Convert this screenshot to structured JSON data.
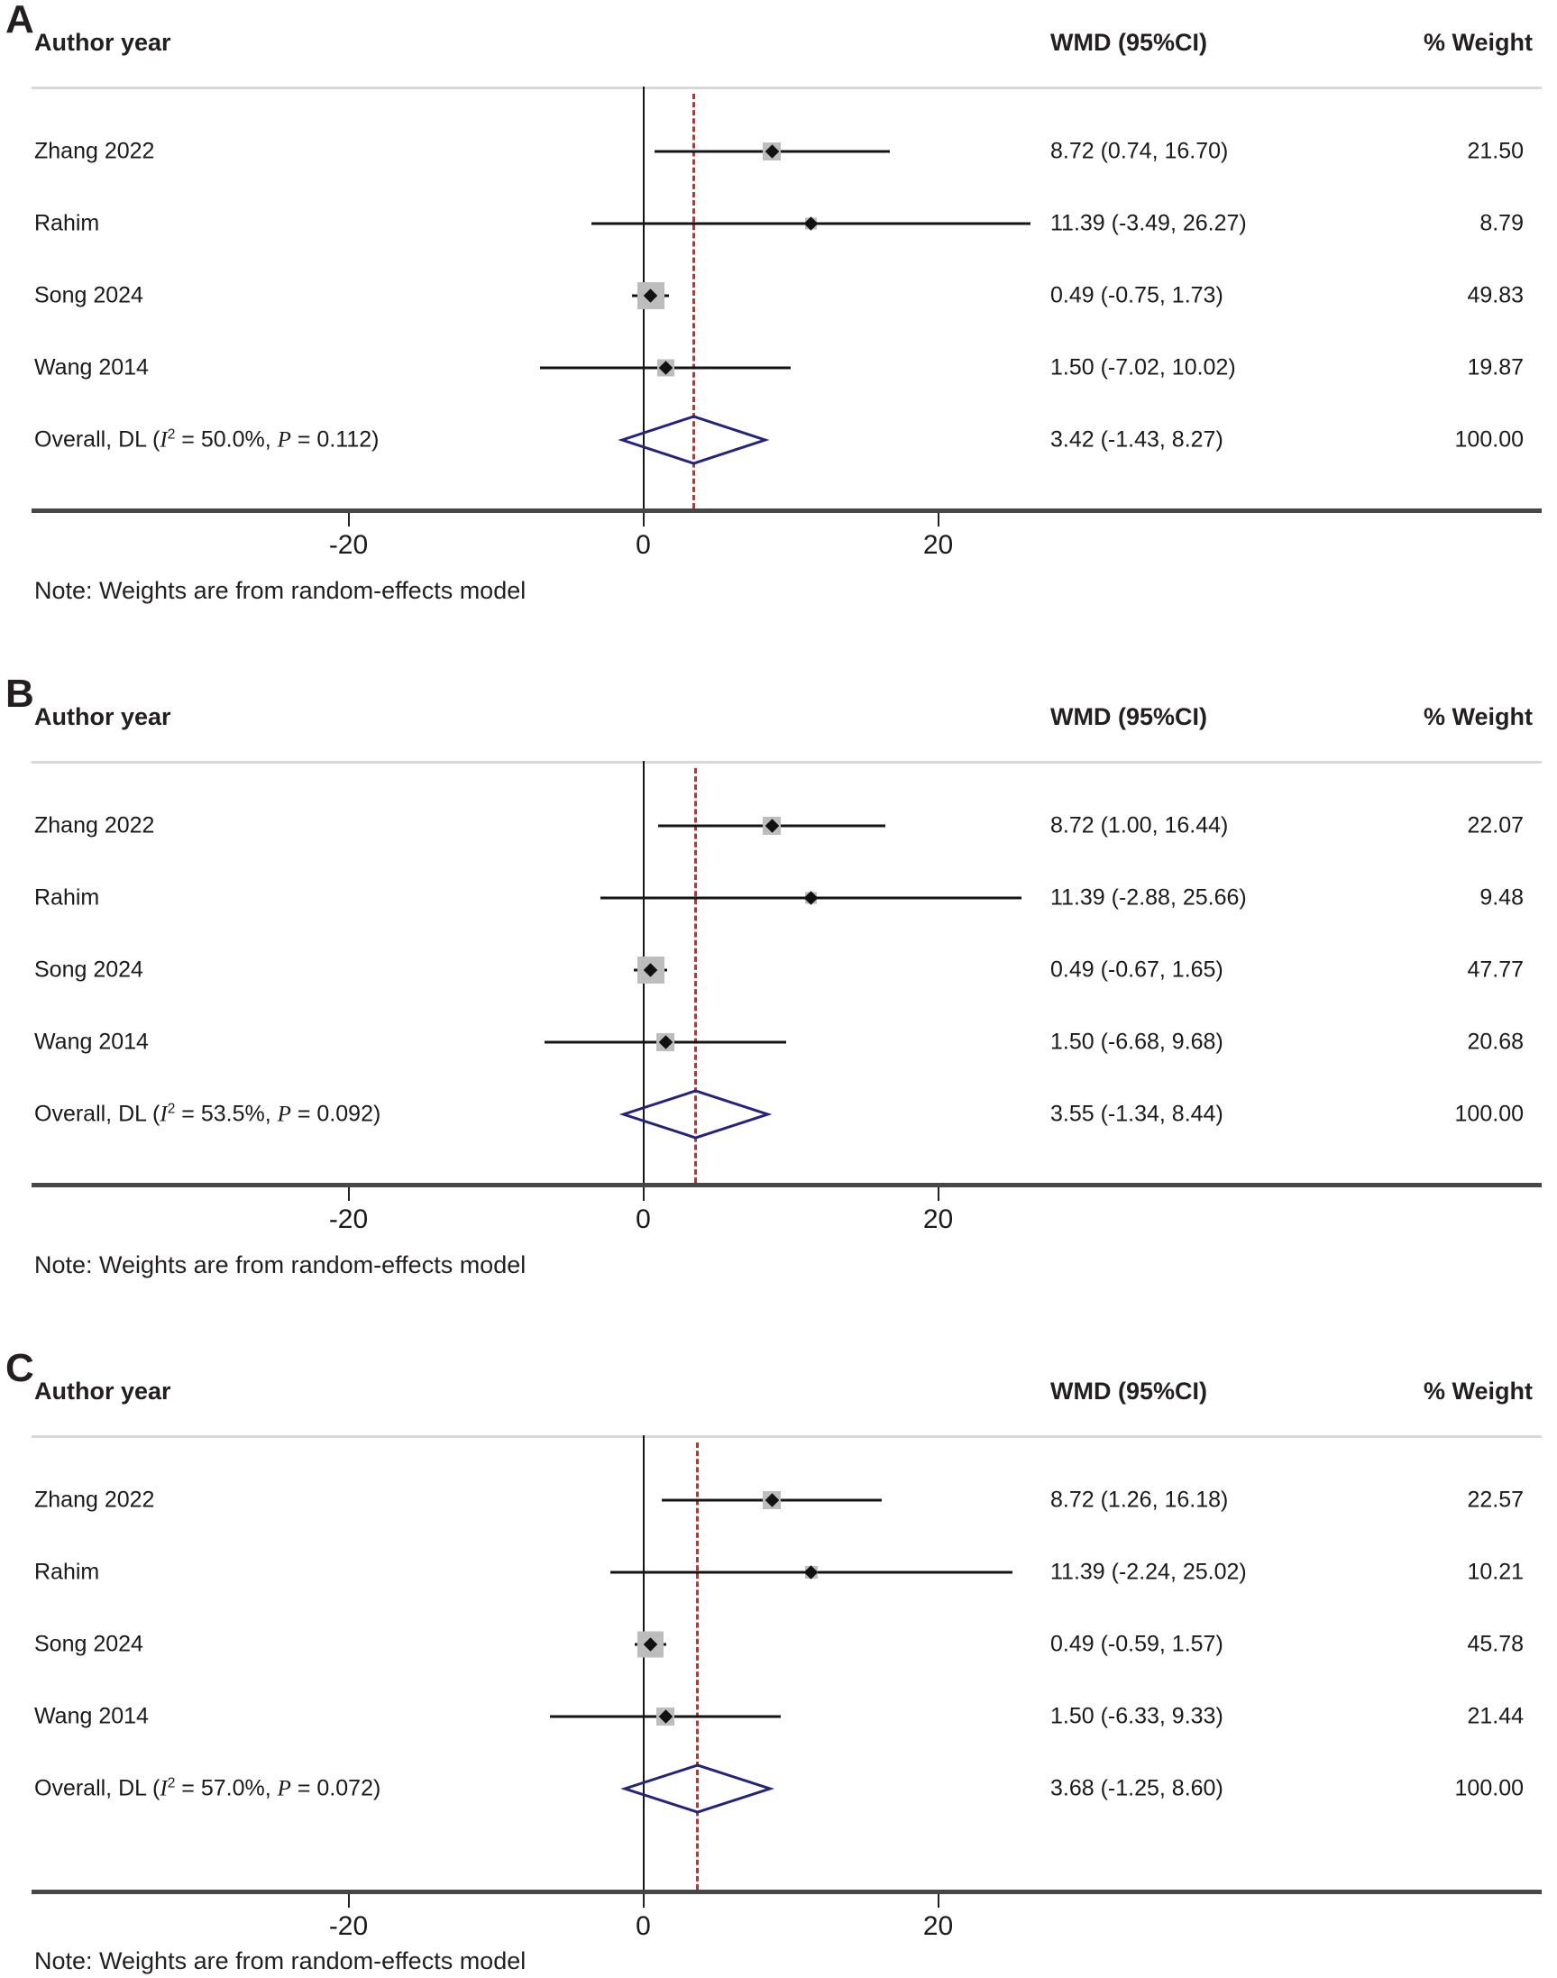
{
  "note": "Note: Weights are from random-effects model",
  "columns": {
    "study": "Author year",
    "wmd": "WMD (95%CI)",
    "weight": "% Weight"
  },
  "labels": {
    "overall_prefix": "Overall, DL (",
    "i_sym": "I",
    "sup2": "2",
    "eq": " = ",
    "sep": ", ",
    "p_sym": "P",
    "close": ")"
  },
  "xaxis": {
    "ticks": [
      -20,
      0,
      20
    ]
  },
  "colors": {
    "diamond_outline": "#23237e",
    "dashed_overall_line": "#9e4040",
    "ci_line": "#161616",
    "weight_square": "#bdbdbd",
    "axis_line": "#474747",
    "header_rule": "#d8d8d8",
    "text": "#231f20"
  },
  "chart_data": [
    {
      "type": "forest",
      "panel_label": "A",
      "effect_measure": "WMD (95%CI)",
      "xticks": [
        -20,
        0,
        20
      ],
      "rows": [
        {
          "study": "Zhang 2022",
          "est": 8.72,
          "lo": 0.74,
          "hi": 16.7,
          "weight": 21.5,
          "wmd_text": "8.72 (0.74, 16.70)",
          "weight_text": "21.50"
        },
        {
          "study": "Rahim",
          "est": 11.39,
          "lo": -3.49,
          "hi": 26.27,
          "weight": 8.79,
          "wmd_text": "11.39 (-3.49, 26.27)",
          "weight_text": "8.79"
        },
        {
          "study": "Song 2024",
          "est": 0.49,
          "lo": -0.75,
          "hi": 1.73,
          "weight": 49.83,
          "wmd_text": "0.49 (-0.75, 1.73)",
          "weight_text": "49.83"
        },
        {
          "study": "Wang 2014",
          "est": 1.5,
          "lo": -7.02,
          "hi": 10.02,
          "weight": 19.87,
          "wmd_text": "1.50 (-7.02, 10.02)",
          "weight_text": "19.87"
        }
      ],
      "overall": {
        "model": "DL random-effects",
        "i2": "50.0%",
        "p": "0.112",
        "est": 3.42,
        "lo": -1.43,
        "hi": 8.27,
        "weight": 100.0,
        "wmd_text": "3.42 (-1.43, 8.27)",
        "weight_text": "100.00"
      },
      "note": "Note: Weights are from random-effects model"
    },
    {
      "type": "forest",
      "panel_label": "B",
      "effect_measure": "WMD (95%CI)",
      "xticks": [
        -20,
        0,
        20
      ],
      "rows": [
        {
          "study": "Zhang 2022",
          "est": 8.72,
          "lo": 1.0,
          "hi": 16.44,
          "weight": 22.07,
          "wmd_text": "8.72 (1.00, 16.44)",
          "weight_text": "22.07"
        },
        {
          "study": "Rahim",
          "est": 11.39,
          "lo": -2.88,
          "hi": 25.66,
          "weight": 9.48,
          "wmd_text": "11.39 (-2.88, 25.66)",
          "weight_text": "9.48"
        },
        {
          "study": "Song 2024",
          "est": 0.49,
          "lo": -0.67,
          "hi": 1.65,
          "weight": 47.77,
          "wmd_text": "0.49 (-0.67, 1.65)",
          "weight_text": "47.77"
        },
        {
          "study": "Wang 2014",
          "est": 1.5,
          "lo": -6.68,
          "hi": 9.68,
          "weight": 20.68,
          "wmd_text": "1.50 (-6.68, 9.68)",
          "weight_text": "20.68"
        }
      ],
      "overall": {
        "model": "DL random-effects",
        "i2": "53.5%",
        "p": "0.092",
        "est": 3.55,
        "lo": -1.34,
        "hi": 8.44,
        "weight": 100.0,
        "wmd_text": "3.55 (-1.34, 8.44)",
        "weight_text": "100.00"
      },
      "note": "Note: Weights are from random-effects model"
    },
    {
      "type": "forest",
      "panel_label": "C",
      "effect_measure": "WMD (95%CI)",
      "xticks": [
        -20,
        0,
        20
      ],
      "rows": [
        {
          "study": "Zhang 2022",
          "est": 8.72,
          "lo": 1.26,
          "hi": 16.18,
          "weight": 22.57,
          "wmd_text": "8.72 (1.26, 16.18)",
          "weight_text": "22.57"
        },
        {
          "study": "Rahim",
          "est": 11.39,
          "lo": -2.24,
          "hi": 25.02,
          "weight": 10.21,
          "wmd_text": "11.39 (-2.24, 25.02)",
          "weight_text": "10.21"
        },
        {
          "study": "Song 2024",
          "est": 0.49,
          "lo": -0.59,
          "hi": 1.57,
          "weight": 45.78,
          "wmd_text": "0.49 (-0.59, 1.57)",
          "weight_text": "45.78"
        },
        {
          "study": "Wang 2014",
          "est": 1.5,
          "lo": -6.33,
          "hi": 9.33,
          "weight": 21.44,
          "wmd_text": "1.50 (-6.33, 9.33)",
          "weight_text": "21.44"
        }
      ],
      "overall": {
        "model": "DL random-effects",
        "i2": "57.0%",
        "p": "0.072",
        "est": 3.68,
        "lo": -1.25,
        "hi": 8.6,
        "weight": 100.0,
        "wmd_text": "3.68 (-1.25, 8.60)",
        "weight_text": "100.00"
      },
      "note": "Note: Weights are from random-effects model"
    }
  ]
}
